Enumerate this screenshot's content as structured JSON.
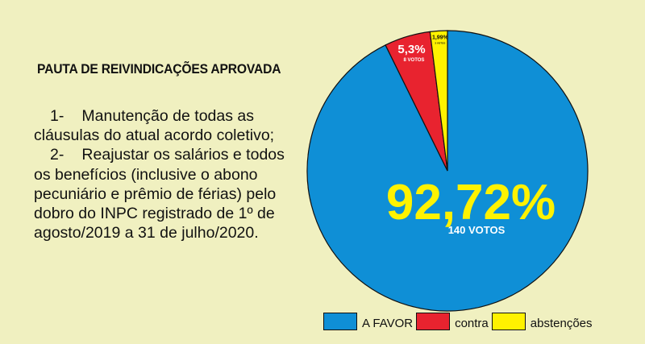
{
  "heading": "PAUTA DE REIVINDICAÇÕES APROVADA",
  "items": [
    {
      "num": "1-",
      "text": "Manutenção de todas as cláusulas do atual acordo coletivo;"
    },
    {
      "num": "2-",
      "text": "Reajustar os salários e todos os benefícios (inclusive o abono pecuniário e prêmio de férias) pelo dobro do INPC registrado de 1º de agosto/2019 a 31 de julho/2020."
    }
  ],
  "chart_data": {
    "type": "pie",
    "title": "",
    "slices": [
      {
        "label": "A FAVOR",
        "value": 92.72,
        "value_label": "92,72%",
        "votes_label": "140 VOTOS",
        "color": "#0f8fd6"
      },
      {
        "label": "contra",
        "value": 5.3,
        "value_label": "5,3%",
        "votes_label": "8 VOTOS",
        "color": "#e8232f"
      },
      {
        "label": "abstenções",
        "value": 1.99,
        "value_label": "1,99%",
        "votes_label": "3 VOTOS",
        "color": "#fff200"
      }
    ],
    "legend_position": "bottom"
  }
}
